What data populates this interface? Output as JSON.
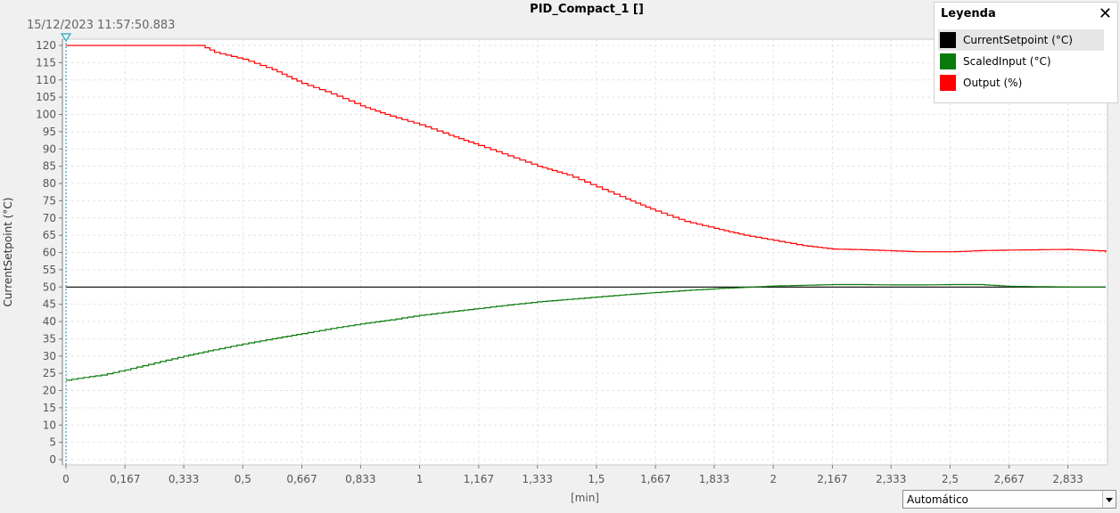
{
  "timestamp": "15/12/2023 11:57:50.883",
  "legend": {
    "title": "Leyenda",
    "close_label": "✕",
    "items": [
      {
        "label": "CurrentSetpoint (°C)",
        "color": "#000000"
      },
      {
        "label": "ScaledInput (°C)",
        "color": "#0a7a0a"
      },
      {
        "label": "Output (%)",
        "color": "#ff0000"
      }
    ]
  },
  "mode_select": {
    "value": "Automático"
  },
  "chart_data": {
    "type": "line",
    "title": "PID_Compact_1 []",
    "xlabel": "[min]",
    "ylabel": "CurrentSetpoint (°C)",
    "xlim": [
      0,
      2.94
    ],
    "ylim": [
      0,
      120
    ],
    "y_ticks": [
      0,
      5,
      10,
      15,
      20,
      25,
      30,
      35,
      40,
      45,
      50,
      55,
      60,
      65,
      70,
      75,
      80,
      85,
      90,
      95,
      100,
      105,
      110,
      115,
      120
    ],
    "x_ticks": [
      0,
      0.167,
      0.333,
      0.5,
      0.667,
      0.833,
      1,
      1.167,
      1.333,
      1.5,
      1.667,
      1.833,
      2,
      2.167,
      2.333,
      2.5,
      2.667,
      2.833
    ],
    "x_tick_labels": [
      "0",
      "0,167",
      "0,333",
      "0,5",
      "0,667",
      "0,833",
      "1",
      "1,167",
      "1,333",
      "1,5",
      "1,667",
      "1,833",
      "2",
      "2,167",
      "2,333",
      "2,5",
      "2,667",
      "2,833"
    ],
    "grid": true,
    "series": [
      {
        "name": "CurrentSetpoint (°C)",
        "color": "#000000",
        "x": [
          0,
          2.94
        ],
        "y": [
          50,
          50
        ]
      },
      {
        "name": "ScaledInput (°C)",
        "color": "#0a7a0a",
        "x": [
          0,
          0.05,
          0.1,
          0.167,
          0.25,
          0.333,
          0.417,
          0.5,
          0.583,
          0.667,
          0.75,
          0.833,
          0.917,
          1,
          1.083,
          1.167,
          1.25,
          1.333,
          1.417,
          1.5,
          1.583,
          1.667,
          1.75,
          1.833,
          1.917,
          2,
          2.083,
          2.167,
          2.25,
          2.333,
          2.417,
          2.5,
          2.583,
          2.667,
          2.75,
          2.833,
          2.94
        ],
        "y": [
          23,
          23.8,
          24.5,
          26,
          28,
          30,
          31.8,
          33.5,
          35,
          36.5,
          38,
          39.3,
          40.5,
          41.8,
          42.8,
          43.8,
          44.8,
          45.7,
          46.4,
          47.1,
          47.8,
          48.4,
          49,
          49.5,
          49.9,
          50.3,
          50.5,
          50.7,
          50.7,
          50.6,
          50.6,
          50.7,
          50.7,
          50.2,
          50.1,
          50,
          50
        ]
      },
      {
        "name": "Output (%)",
        "color": "#ff0000",
        "x": [
          0,
          0.1,
          0.2,
          0.3,
          0.38,
          0.42,
          0.5,
          0.583,
          0.667,
          0.75,
          0.833,
          0.917,
          1,
          1.083,
          1.167,
          1.25,
          1.333,
          1.417,
          1.5,
          1.583,
          1.667,
          1.75,
          1.833,
          1.917,
          2,
          2.083,
          2.167,
          2.25,
          2.333,
          2.4,
          2.5,
          2.6,
          2.667,
          2.75,
          2.833,
          2.92,
          2.94
        ],
        "y": [
          120,
          120,
          120,
          120,
          120,
          118,
          116,
          113,
          109,
          106,
          102.5,
          99.5,
          97,
          94,
          91,
          88,
          85,
          82.5,
          79,
          75.5,
          72,
          69,
          67,
          65,
          63.5,
          62,
          61,
          60.8,
          60.5,
          60.2,
          60.2,
          60.6,
          60.7,
          60.8,
          60.9,
          60.5,
          60
        ]
      }
    ]
  }
}
